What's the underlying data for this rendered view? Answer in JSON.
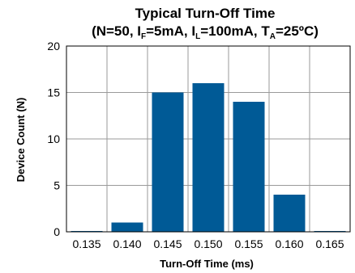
{
  "chart_data": {
    "type": "bar",
    "title": "Typical Turn-Off Time",
    "subtitle_parts": {
      "open": "(N=50, I",
      "sub_f": "F",
      "mid1": "=5mA, I",
      "sub_l": "L",
      "mid2": "=100mA, T",
      "sub_a": "A",
      "close": "=25ºC)"
    },
    "xlabel": "Turn-Off Time (ms)",
    "ylabel": "Device Count (N)",
    "categories": [
      "0.135",
      "0.140",
      "0.145",
      "0.150",
      "0.155",
      "0.160",
      "0.165"
    ],
    "values": [
      0,
      1,
      15,
      16,
      14,
      4,
      0
    ],
    "ylim": [
      0,
      20
    ],
    "yticks": [
      0,
      5,
      10,
      15,
      20
    ],
    "grid": true,
    "bar_color": "#005a96",
    "grid_color": "#9a9a9a"
  }
}
